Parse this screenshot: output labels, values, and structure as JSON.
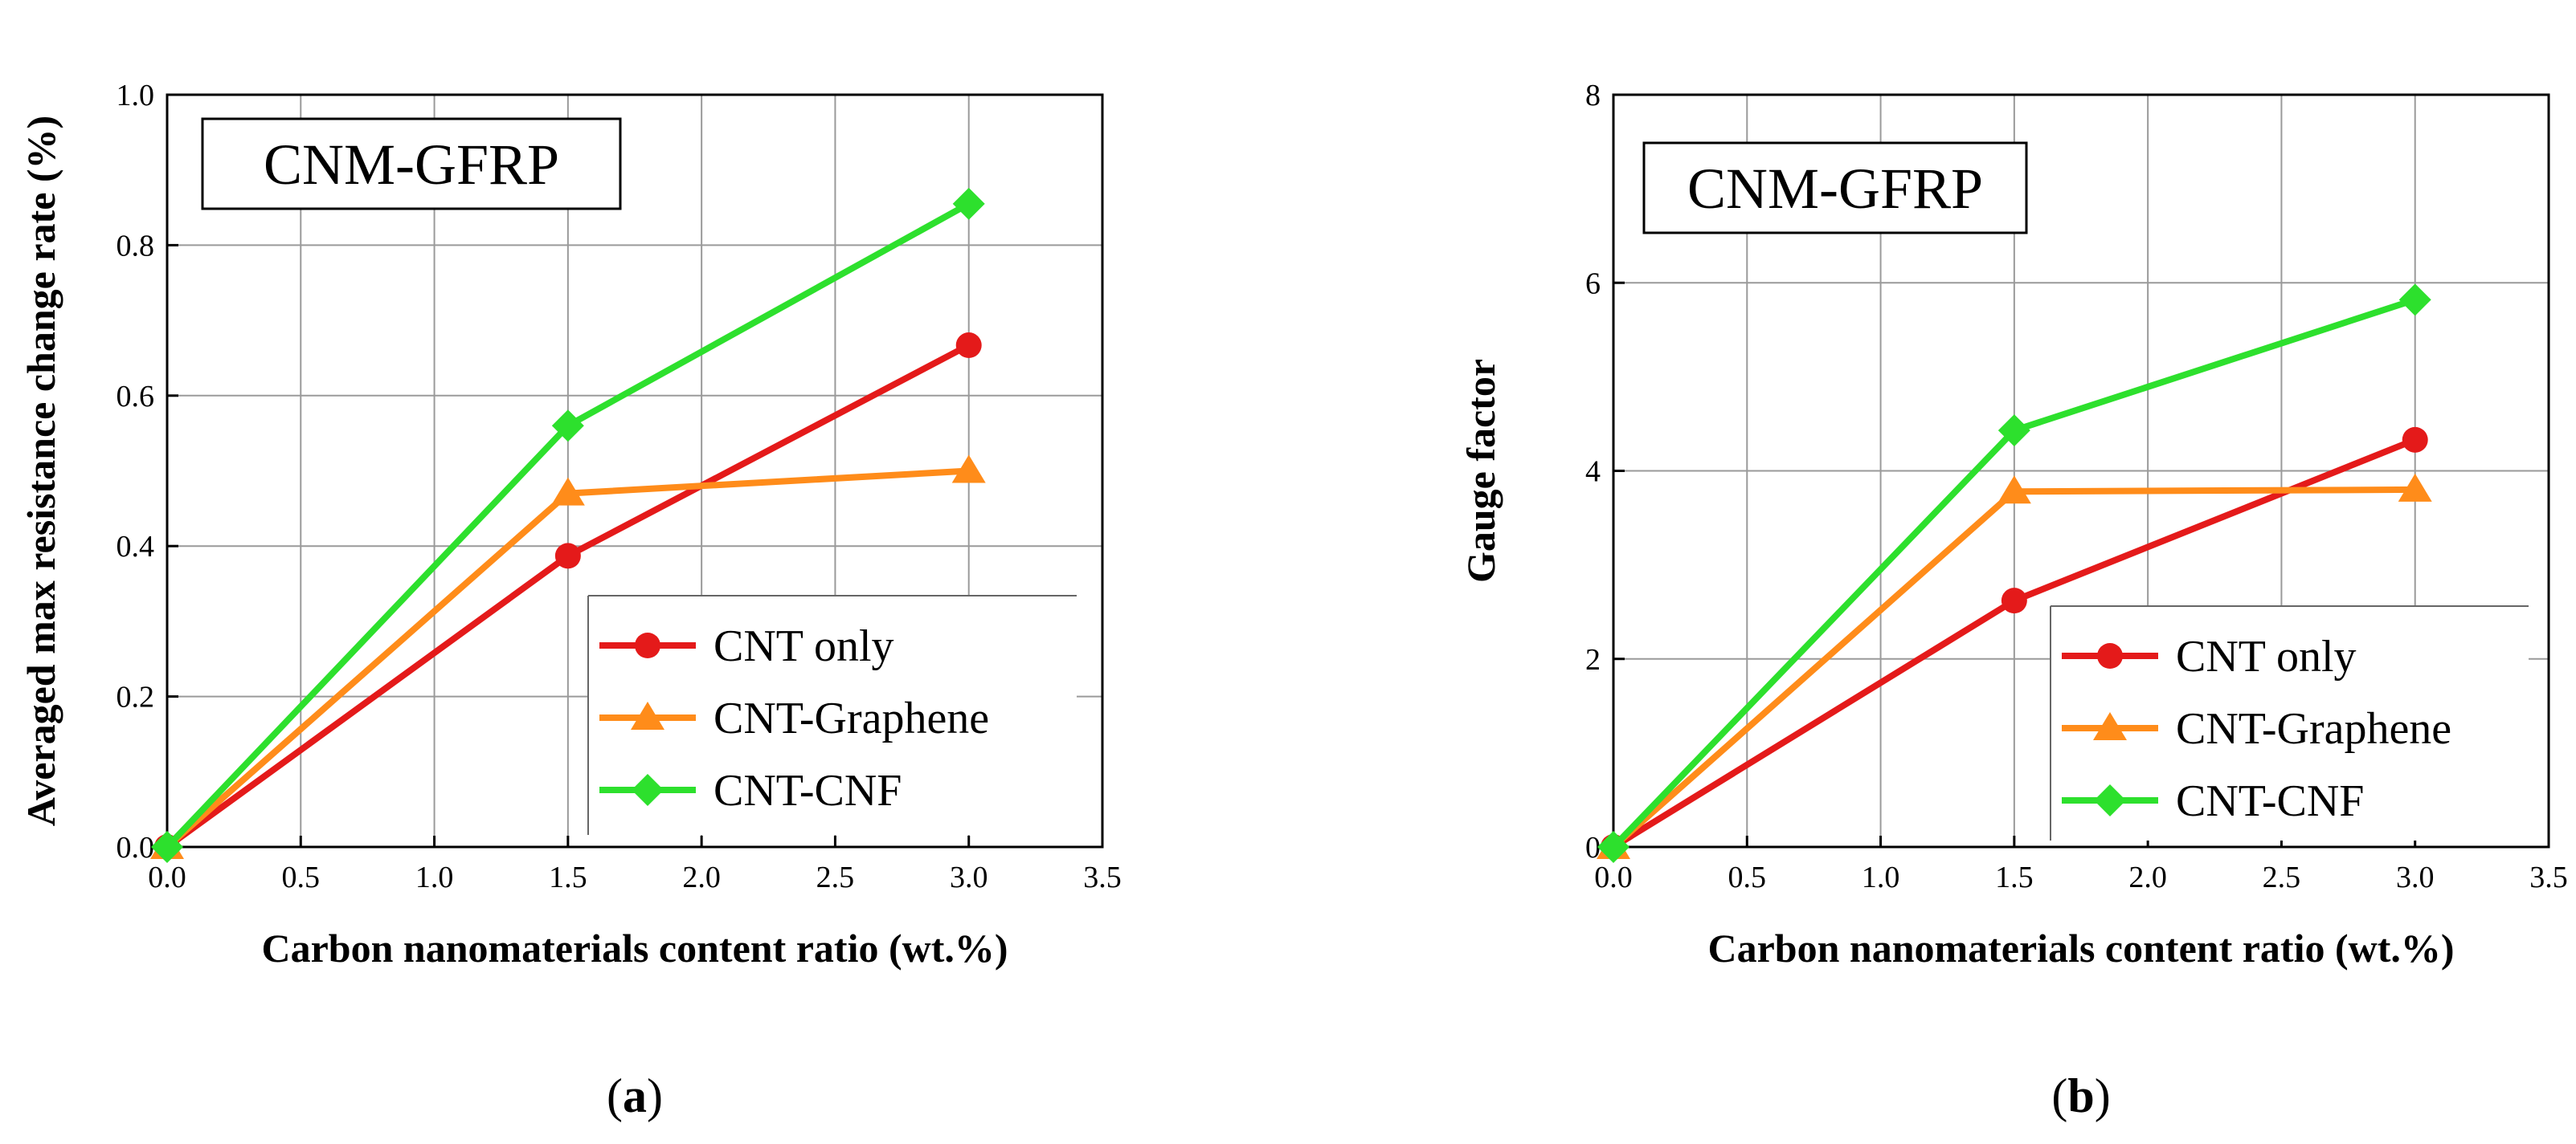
{
  "chart_data": [
    {
      "type": "line",
      "panel_label": "a",
      "inset_title": "CNM-GFRP",
      "xlabel": "Carbon nanomaterials content ratio (wt.%)",
      "ylabel": "Averaged max resistance change rate (%)",
      "xlim": [
        0.0,
        3.5
      ],
      "ylim": [
        0.0,
        1.0
      ],
      "x_ticks": [
        "0.0",
        "0.5",
        "1.0",
        "1.5",
        "2.0",
        "2.5",
        "3.0",
        "3.5"
      ],
      "y_ticks": [
        "0.0",
        "0.2",
        "0.4",
        "0.6",
        "0.8",
        "1.0"
      ],
      "grid": true,
      "legend_position": "lower-right",
      "x": [
        0.0,
        1.5,
        3.0
      ],
      "series": [
        {
          "name": "CNT only",
          "color": "#e41a1a",
          "marker": "circle",
          "values": [
            0.0,
            0.387,
            0.667
          ]
        },
        {
          "name": "CNT-Graphene",
          "color": "#ff8c1a",
          "marker": "triangle",
          "values": [
            0.0,
            0.47,
            0.5
          ]
        },
        {
          "name": "CNT-CNF",
          "color": "#2de02d",
          "marker": "diamond",
          "values": [
            0.0,
            0.56,
            0.855
          ]
        }
      ]
    },
    {
      "type": "line",
      "panel_label": "b",
      "inset_title": "CNM-GFRP",
      "xlabel": "Carbon nanomaterials content ratio (wt.%)",
      "ylabel": "Gauge factor",
      "xlim": [
        0.0,
        3.5
      ],
      "ylim": [
        0,
        8
      ],
      "x_ticks": [
        "0.0",
        "0.5",
        "1.0",
        "1.5",
        "2.0",
        "2.5",
        "3.0",
        "3.5"
      ],
      "y_ticks": [
        "0",
        "2",
        "4",
        "6",
        "8"
      ],
      "grid": true,
      "legend_position": "lower-right",
      "x": [
        0.0,
        1.5,
        3.0
      ],
      "series": [
        {
          "name": "CNT only",
          "color": "#e41a1a",
          "marker": "circle",
          "values": [
            0.0,
            2.62,
            4.33
          ]
        },
        {
          "name": "CNT-Graphene",
          "color": "#ff8c1a",
          "marker": "triangle",
          "values": [
            0.0,
            3.78,
            3.8
          ]
        },
        {
          "name": "CNT-CNF",
          "color": "#2de02d",
          "marker": "diamond",
          "values": [
            0.0,
            4.43,
            5.82
          ]
        }
      ]
    }
  ]
}
